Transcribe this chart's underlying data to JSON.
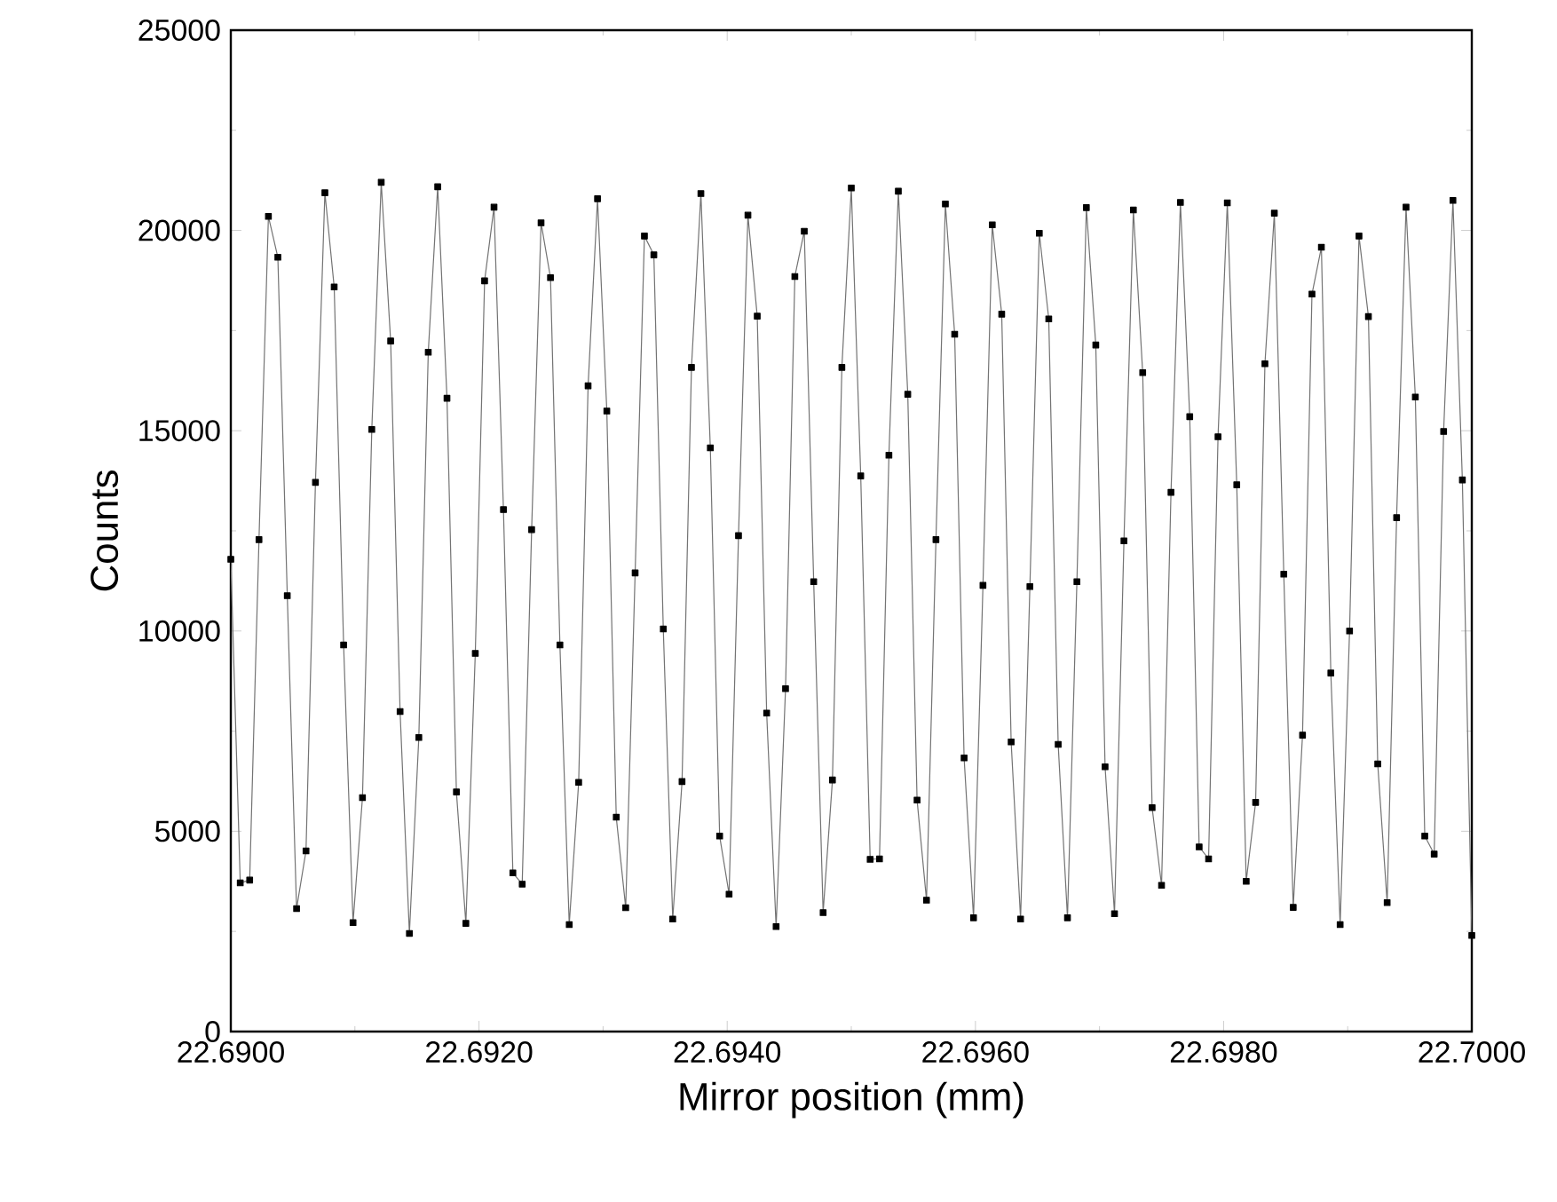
{
  "chart_data": {
    "type": "line",
    "xlabel": "Mirror position (mm)",
    "ylabel": "Counts",
    "color": "#000000",
    "marker": "square",
    "line_style": "solid",
    "grid": false,
    "xlim": [
      22.69,
      22.7
    ],
    "ylim": [
      0,
      25000
    ],
    "xticks": [
      {
        "value": 22.69,
        "label": "22.6900"
      },
      {
        "value": 22.692,
        "label": "22.6920"
      },
      {
        "value": 22.694,
        "label": "22.6940"
      },
      {
        "value": 22.696,
        "label": "22.6960"
      },
      {
        "value": 22.698,
        "label": "22.6980"
      },
      {
        "value": 22.7,
        "label": "22.7000"
      }
    ],
    "yticks": [
      0,
      5000,
      10000,
      15000,
      20000,
      25000
    ],
    "x": [
      22.69,
      22.690076,
      22.690152,
      22.690227,
      22.690303,
      22.690379,
      22.690455,
      22.69053,
      22.690606,
      22.690682,
      22.690758,
      22.690833,
      22.690909,
      22.690985,
      22.691061,
      22.691136,
      22.691212,
      22.691288,
      22.691364,
      22.691439,
      22.691515,
      22.691591,
      22.691667,
      22.691742,
      22.691818,
      22.691894,
      22.69197,
      22.692045,
      22.692121,
      22.692197,
      22.692273,
      22.692348,
      22.692424,
      22.6925,
      22.692576,
      22.692652,
      22.692727,
      22.692803,
      22.692879,
      22.692955,
      22.69303,
      22.693106,
      22.693182,
      22.693258,
      22.693333,
      22.693409,
      22.693485,
      22.693561,
      22.693636,
      22.693712,
      22.693788,
      22.693864,
      22.693939,
      22.694015,
      22.694091,
      22.694167,
      22.694242,
      22.694318,
      22.694394,
      22.69447,
      22.694545,
      22.694621,
      22.694697,
      22.694773,
      22.694848,
      22.694924,
      22.695,
      22.695076,
      22.695152,
      22.695227,
      22.695303,
      22.695379,
      22.695455,
      22.69553,
      22.695606,
      22.695682,
      22.695758,
      22.695833,
      22.695909,
      22.695985,
      22.696061,
      22.696136,
      22.696212,
      22.696288,
      22.696364,
      22.696439,
      22.696515,
      22.696591,
      22.696667,
      22.696742,
      22.696818,
      22.696894,
      22.69697,
      22.697045,
      22.697121,
      22.697197,
      22.697273,
      22.697348,
      22.697424,
      22.6975,
      22.697576,
      22.697652,
      22.697727,
      22.697803,
      22.697879,
      22.697955,
      22.69803,
      22.698106,
      22.698182,
      22.698258,
      22.698333,
      22.698409,
      22.698485,
      22.698561,
      22.698636,
      22.698712,
      22.698788,
      22.698864,
      22.698939,
      22.699015,
      22.699091,
      22.699167,
      22.699242,
      22.699318,
      22.699394,
      22.69947,
      22.699545,
      22.699621,
      22.699697,
      22.699773,
      22.699848,
      22.699924,
      22.7
    ],
    "values": [
      11790,
      3710,
      3780,
      12280,
      20350,
      19330,
      10880,
      3070,
      4510,
      13710,
      20940,
      18590,
      9650,
      2720,
      5840,
      15030,
      21200,
      17240,
      7990,
      2450,
      7340,
      16960,
      21090,
      15810,
      5980,
      2700,
      9440,
      18740,
      20580,
      13030,
      3960,
      3680,
      12530,
      20190,
      18820,
      9650,
      2670,
      6220,
      16120,
      20790,
      15490,
      5350,
      3090,
      11450,
      19860,
      19390,
      10050,
      2810,
      6240,
      16580,
      20920,
      14570,
      4880,
      3430,
      12380,
      20380,
      17860,
      7950,
      2620,
      8560,
      18850,
      19980,
      11230,
      2970,
      6280,
      16580,
      21060,
      13870,
      4300,
      4310,
      14390,
      20980,
      15910,
      5780,
      3280,
      12280,
      20660,
      17410,
      6830,
      2840,
      11140,
      20140,
      17910,
      7230,
      2810,
      11110,
      19930,
      17790,
      7170,
      2840,
      11230,
      20570,
      17140,
      6610,
      2940,
      12250,
      20510,
      16450,
      5590,
      3650,
      13460,
      20700,
      15350,
      4610,
      4310,
      14850,
      20690,
      13650,
      3750,
      5720,
      16670,
      20430,
      11420,
      3100,
      7400,
      18410,
      19580,
      8950,
      2670,
      10000,
      19860,
      17850,
      6680,
      3220,
      12830,
      20580,
      15840,
      4880,
      4430,
      14980,
      20750,
      13770,
      2400
    ]
  }
}
